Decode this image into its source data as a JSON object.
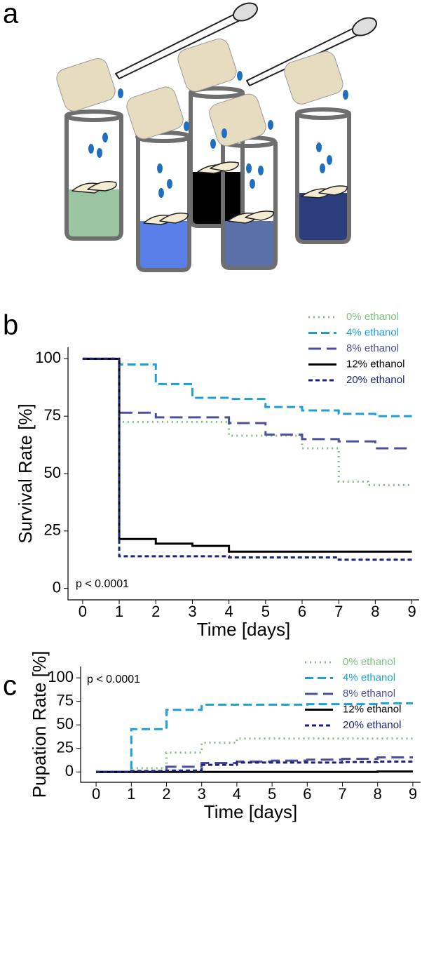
{
  "figure": {
    "panel_labels": [
      "a",
      "b",
      "c"
    ]
  },
  "chart_data": [
    {
      "type": "step",
      "y_label": "Survival Rate [%]",
      "x_label": "Time [days]",
      "annotation": "p < 0.0001",
      "xlim": [
        -0.4,
        9.2
      ],
      "ylim": [
        -5,
        105
      ],
      "xticks": [
        0,
        1,
        2,
        3,
        4,
        5,
        6,
        7,
        8,
        9
      ],
      "yticks": [
        0,
        25,
        50,
        75,
        100
      ],
      "series": [
        {
          "name": "0% ethanol",
          "color": "#7cc47c",
          "line_style": "dotted",
          "x": [
            0,
            1,
            4,
            6,
            7,
            7.8,
            9
          ],
          "values": [
            100,
            72.5,
            66.5,
            61,
            46.5,
            45,
            45
          ]
        },
        {
          "name": "4% ethanol",
          "color": "#1e9fd8",
          "line_style": "dashed",
          "x": [
            0,
            1,
            2,
            3,
            4,
            5,
            6,
            7,
            8,
            9
          ],
          "values": [
            100,
            97.5,
            89,
            83,
            82.5,
            79,
            77.5,
            76,
            75,
            75
          ]
        },
        {
          "name": "8% ethanol",
          "color": "#4b4f9e",
          "line_style": "longdash",
          "x": [
            0,
            1,
            2,
            4,
            5,
            6,
            7,
            8,
            9
          ],
          "values": [
            100,
            76.5,
            74.5,
            72,
            67,
            65,
            64,
            61,
            61
          ]
        },
        {
          "name": "12% ethanol",
          "color": "#000000",
          "line_style": "solid",
          "x": [
            0,
            1,
            2,
            3,
            4,
            9
          ],
          "values": [
            100,
            21.5,
            19.5,
            18.5,
            16,
            16
          ]
        },
        {
          "name": "20% ethanol",
          "color": "#1a237e",
          "line_style": "dotdash",
          "x": [
            0,
            1,
            4,
            7,
            9
          ],
          "values": [
            100,
            14,
            13.5,
            12.5,
            12.5
          ]
        }
      ]
    },
    {
      "type": "step",
      "y_label": "Pupation Rate [%]",
      "x_label": "Time [days]",
      "annotation": "p < 0.0001",
      "xlim": [
        -0.44,
        9.22
      ],
      "ylim": [
        -11,
        112
      ],
      "xticks": [
        0,
        1,
        2,
        3,
        4,
        5,
        6,
        7,
        8,
        9
      ],
      "yticks": [
        0,
        25,
        50,
        75,
        100
      ],
      "series": [
        {
          "name": "0% ethanol",
          "color": "#7cc47c",
          "line_style": "dotted",
          "x": [
            0,
            1,
            2,
            3,
            4,
            9
          ],
          "values": [
            0,
            4,
            20.5,
            31,
            35.5,
            35.5
          ]
        },
        {
          "name": "4% ethanol",
          "color": "#1e9fd8",
          "line_style": "dashed",
          "x": [
            0,
            1,
            2,
            3,
            6,
            8,
            9
          ],
          "values": [
            0,
            45.5,
            66,
            71.5,
            72,
            73,
            73
          ]
        },
        {
          "name": "8% ethanol",
          "color": "#4b4f9e",
          "line_style": "longdash",
          "x": [
            0,
            2,
            3,
            4,
            5,
            6,
            7,
            8,
            9
          ],
          "values": [
            0,
            5.5,
            9.5,
            11,
            12,
            13,
            14,
            15.5,
            15.5
          ]
        },
        {
          "name": "12% ethanol",
          "color": "#000000",
          "line_style": "solid",
          "x": [
            0,
            8,
            9
          ],
          "values": [
            0,
            0.5,
            0.5
          ]
        },
        {
          "name": "20% ethanol",
          "color": "#1a237e",
          "line_style": "dotdash",
          "x": [
            0,
            1,
            2,
            3,
            4,
            7,
            8,
            9
          ],
          "values": [
            0,
            1,
            1.5,
            7.5,
            10,
            10.5,
            11,
            11
          ]
        }
      ]
    }
  ]
}
